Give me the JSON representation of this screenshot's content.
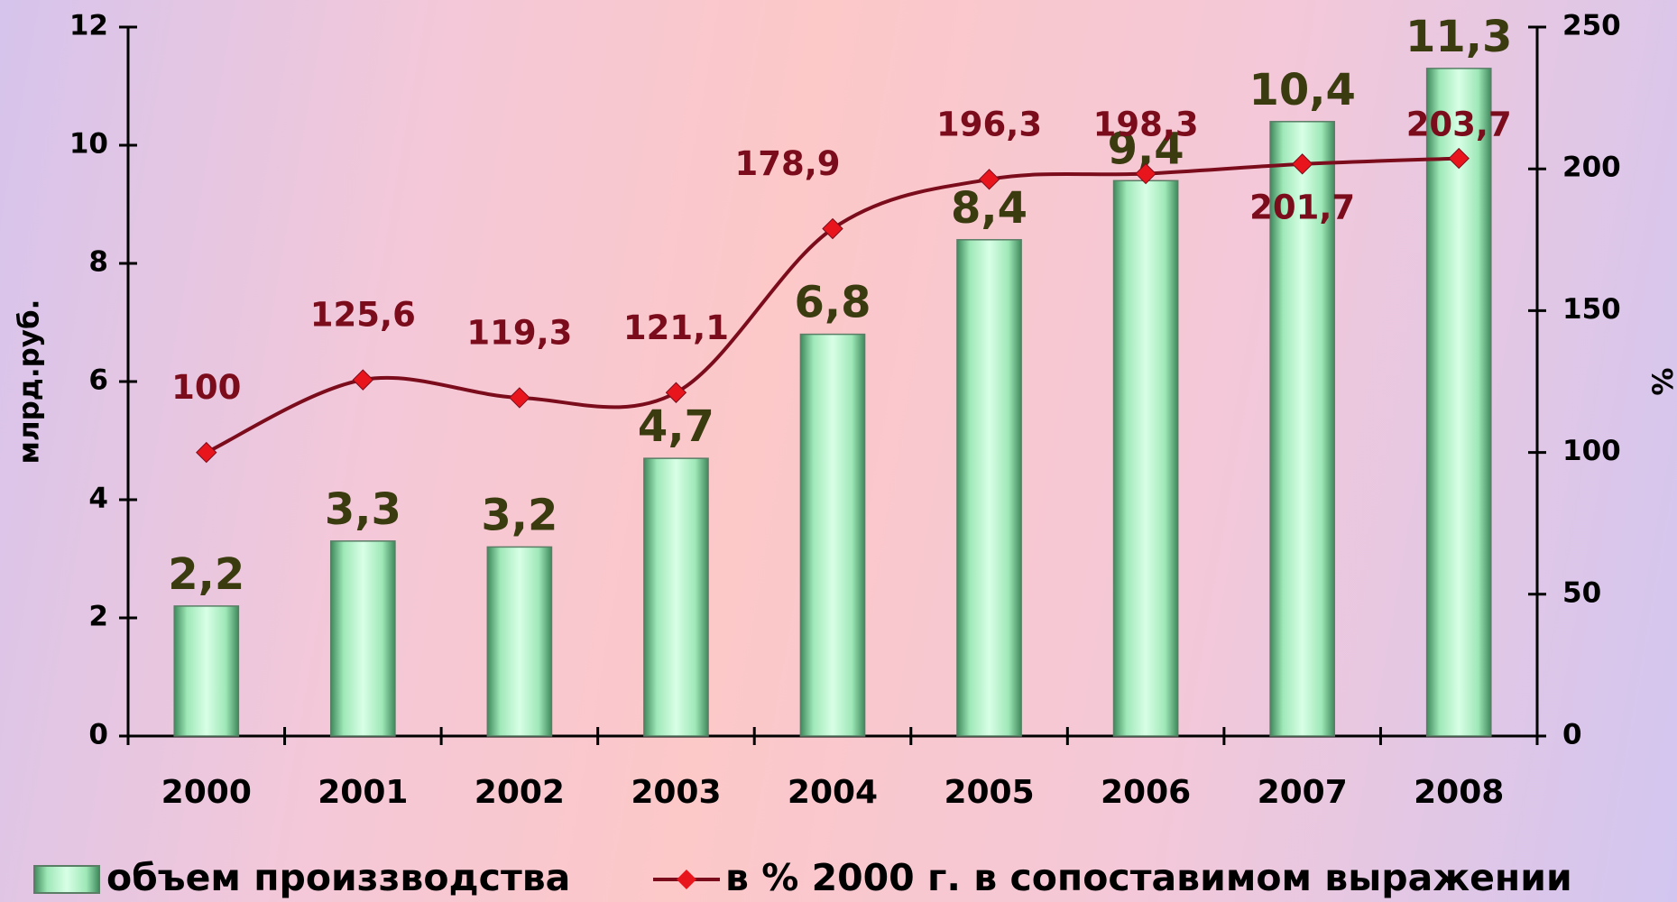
{
  "chart_data": {
    "type": "bar-line",
    "categories": [
      "2000",
      "2001",
      "2002",
      "2003",
      "2004",
      "2005",
      "2006",
      "2007",
      "2008"
    ],
    "ylabel": "млрд.руб.",
    "y2label": "%",
    "ylim": [
      0,
      12
    ],
    "yticks": [
      0,
      2,
      4,
      6,
      8,
      10,
      12
    ],
    "y2lim": [
      0,
      250
    ],
    "y2ticks": [
      0,
      50,
      100,
      150,
      200,
      250
    ],
    "series": [
      {
        "name": "объем произзводства",
        "type": "bar",
        "color": "#9fe8b8",
        "values": [
          2.2,
          3.3,
          3.2,
          4.7,
          6.8,
          8.4,
          9.4,
          10.4,
          11.3
        ],
        "value_labels": [
          "2,2",
          "3,3",
          "3,2",
          "4,7",
          "6,8",
          "8,4",
          "9,4",
          "10,4",
          "11,3"
        ]
      },
      {
        "name": "в % 2000 г. в сопоставимом выражении",
        "type": "line",
        "axis": "y2",
        "color": "#7b0c1c",
        "marker_color": "#e8161c",
        "values": [
          100,
          125.6,
          119.3,
          121.1,
          178.9,
          196.3,
          198.3,
          201.7,
          203.7
        ],
        "value_labels": [
          "100",
          "125,6",
          "119,3",
          "121,1",
          "178,9",
          "196,3",
          "198,3",
          "201,7",
          "203,7"
        ]
      }
    ]
  }
}
